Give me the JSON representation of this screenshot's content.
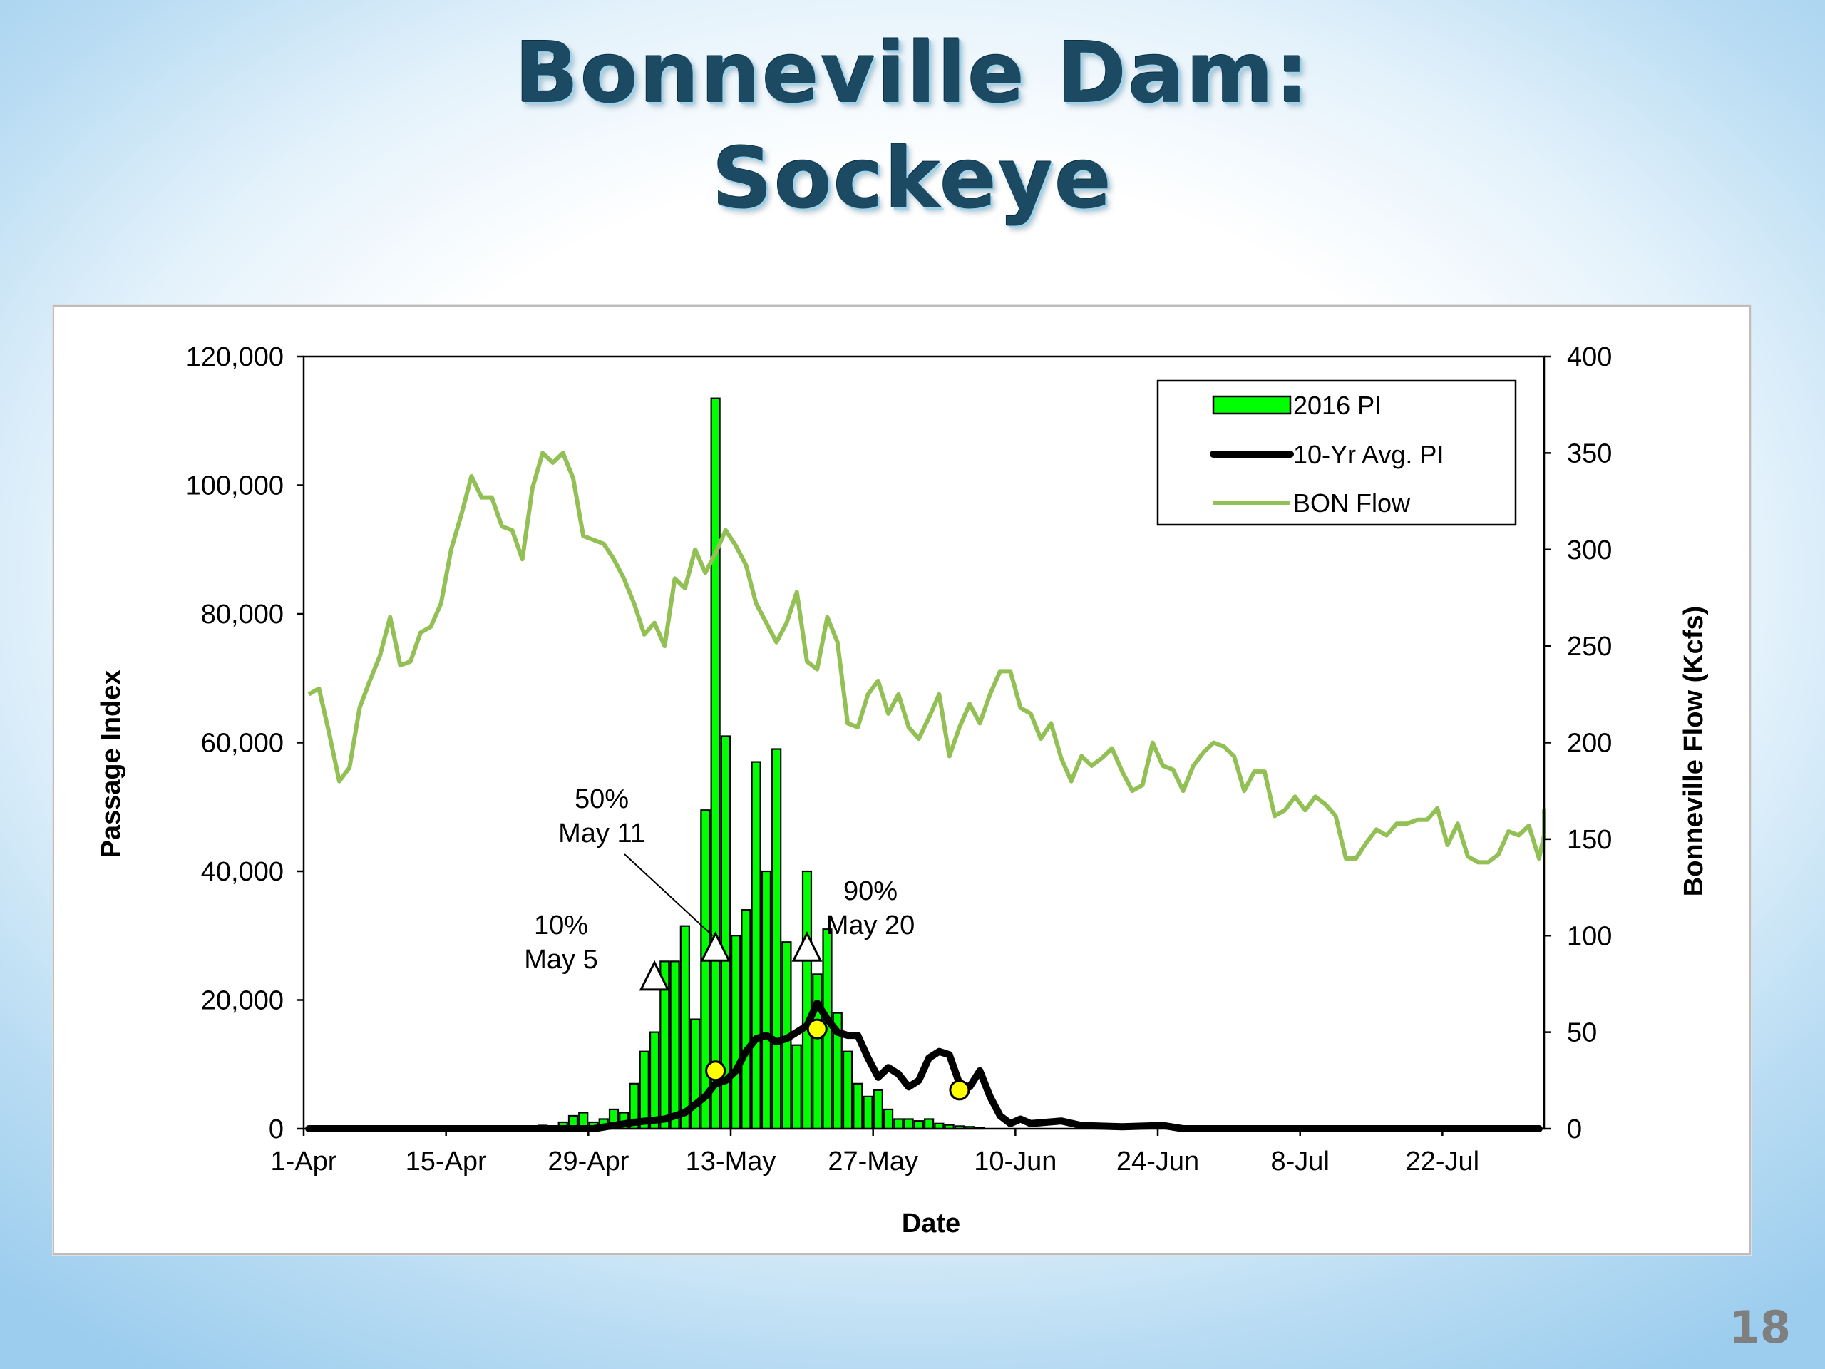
{
  "slide": {
    "title_line1": "Bonneville Dam:",
    "title_line2": "Sockeye",
    "page_number": "18"
  },
  "chart_data": {
    "type": "bar",
    "xlabel": "Date",
    "ylabel": "Passage Index",
    "y2label": "Bonneville  Flow (Kcfs)",
    "ylim": [
      0,
      120000
    ],
    "y2lim": [
      0,
      400
    ],
    "x_start": "1-Apr",
    "x_end": "31-Jul",
    "x_ticks": [
      "1-Apr",
      "15-Apr",
      "29-Apr",
      "13-May",
      "27-May",
      "10-Jun",
      "24-Jun",
      "8-Jul",
      "22-Jul"
    ],
    "y_ticks": [
      "0",
      "20,000",
      "40,000",
      "60,000",
      "80,000",
      "100,000",
      "120,000"
    ],
    "y2_ticks": [
      "0",
      "50",
      "100",
      "150",
      "200",
      "250",
      "300",
      "350",
      "400"
    ],
    "legend_position": "top-right",
    "colors": {
      "bars": "#00ff00",
      "bar_outline": "#000000",
      "avg": "#000000",
      "flow": "#92c054",
      "marker_avg": "#ffff00"
    },
    "series": [
      {
        "name": "2016 PI",
        "kind": "bar",
        "points": [
          [
            "23-Apr",
            200
          ],
          [
            "24-Apr",
            500
          ],
          [
            "25-Apr",
            200
          ],
          [
            "26-Apr",
            1000
          ],
          [
            "27-Apr",
            2000
          ],
          [
            "28-Apr",
            2500
          ],
          [
            "29-Apr",
            1000
          ],
          [
            "30-Apr",
            1500
          ],
          [
            "1-May",
            3000
          ],
          [
            "2-May",
            2500
          ],
          [
            "3-May",
            7000
          ],
          [
            "4-May",
            12000
          ],
          [
            "5-May",
            15000
          ],
          [
            "6-May",
            26000
          ],
          [
            "7-May",
            26000
          ],
          [
            "8-May",
            31500
          ],
          [
            "9-May",
            17000
          ],
          [
            "10-May",
            49500
          ],
          [
            "11-May",
            113500
          ],
          [
            "12-May",
            61000
          ],
          [
            "13-May",
            30000
          ],
          [
            "14-May",
            34000
          ],
          [
            "15-May",
            57000
          ],
          [
            "16-May",
            40000
          ],
          [
            "17-May",
            59000
          ],
          [
            "18-May",
            29000
          ],
          [
            "19-May",
            13000
          ],
          [
            "20-May",
            40000
          ],
          [
            "21-May",
            24000
          ],
          [
            "22-May",
            31000
          ],
          [
            "23-May",
            18000
          ],
          [
            "24-May",
            12000
          ],
          [
            "25-May",
            7000
          ],
          [
            "26-May",
            5000
          ],
          [
            "27-May",
            6000
          ],
          [
            "28-May",
            3000
          ],
          [
            "29-May",
            1500
          ],
          [
            "30-May",
            1500
          ],
          [
            "31-May",
            1200
          ],
          [
            "1-Jun",
            1500
          ],
          [
            "2-Jun",
            800
          ],
          [
            "3-Jun",
            600
          ],
          [
            "4-Jun",
            400
          ],
          [
            "5-Jun",
            300
          ],
          [
            "6-Jun",
            200
          ]
        ]
      },
      {
        "name": "10-Yr Avg. PI",
        "kind": "line",
        "points": [
          [
            "1-Apr",
            0
          ],
          [
            "29-Apr",
            0
          ],
          [
            "1-May",
            500
          ],
          [
            "3-May",
            1000
          ],
          [
            "6-May",
            1500
          ],
          [
            "8-May",
            2500
          ],
          [
            "10-May",
            5000
          ],
          [
            "11-May",
            7000
          ],
          [
            "12-May",
            7500
          ],
          [
            "13-May",
            9000
          ],
          [
            "14-May",
            12000
          ],
          [
            "15-May",
            14000
          ],
          [
            "16-May",
            14500
          ],
          [
            "17-May",
            13500
          ],
          [
            "18-May",
            14000
          ],
          [
            "19-May",
            15000
          ],
          [
            "20-May",
            16000
          ],
          [
            "21-May",
            19500
          ],
          [
            "22-May",
            17000
          ],
          [
            "23-May",
            15000
          ],
          [
            "24-May",
            14500
          ],
          [
            "25-May",
            14500
          ],
          [
            "26-May",
            11000
          ],
          [
            "27-May",
            8000
          ],
          [
            "28-May",
            9500
          ],
          [
            "29-May",
            8500
          ],
          [
            "30-May",
            6500
          ],
          [
            "31-May",
            7500
          ],
          [
            "1-Jun",
            11000
          ],
          [
            "2-Jun",
            12000
          ],
          [
            "3-Jun",
            11500
          ],
          [
            "4-Jun",
            7000
          ],
          [
            "5-Jun",
            6500
          ],
          [
            "6-Jun",
            9000
          ],
          [
            "7-Jun",
            5000
          ],
          [
            "8-Jun",
            2000
          ],
          [
            "9-Jun",
            800
          ],
          [
            "10-Jun",
            1500
          ],
          [
            "11-Jun",
            800
          ],
          [
            "14-Jun",
            1200
          ],
          [
            "16-Jun",
            500
          ],
          [
            "20-Jun",
            300
          ],
          [
            "24-Jun",
            500
          ],
          [
            "26-Jun",
            0
          ],
          [
            "31-Jul",
            0
          ]
        ],
        "markers": [
          [
            "11-May",
            9000
          ],
          [
            "21-May",
            15500
          ],
          [
            "4-Jun",
            6000
          ]
        ]
      },
      {
        "name": "BON Flow",
        "kind": "line",
        "axis": "right",
        "points": [
          [
            "1-Apr",
            225
          ],
          [
            "2-Apr",
            228
          ],
          [
            "3-Apr",
            205
          ],
          [
            "4-Apr",
            180
          ],
          [
            "5-Apr",
            187
          ],
          [
            "6-Apr",
            218
          ],
          [
            "7-Apr",
            232
          ],
          [
            "8-Apr",
            245
          ],
          [
            "9-Apr",
            265
          ],
          [
            "10-Apr",
            240
          ],
          [
            "11-Apr",
            242
          ],
          [
            "12-Apr",
            257
          ],
          [
            "13-Apr",
            260
          ],
          [
            "14-Apr",
            272
          ],
          [
            "15-Apr",
            300
          ],
          [
            "16-Apr",
            318
          ],
          [
            "17-Apr",
            338
          ],
          [
            "18-Apr",
            327
          ],
          [
            "19-Apr",
            327
          ],
          [
            "20-Apr",
            312
          ],
          [
            "21-Apr",
            310
          ],
          [
            "22-Apr",
            295
          ],
          [
            "23-Apr",
            332
          ],
          [
            "24-Apr",
            350
          ],
          [
            "25-Apr",
            345
          ],
          [
            "26-Apr",
            350
          ],
          [
            "27-Apr",
            337
          ],
          [
            "28-Apr",
            307
          ],
          [
            "29-Apr",
            305
          ],
          [
            "30-Apr",
            303
          ],
          [
            "1-May",
            295
          ],
          [
            "2-May",
            285
          ],
          [
            "3-May",
            272
          ],
          [
            "4-May",
            256
          ],
          [
            "5-May",
            262
          ],
          [
            "6-May",
            250
          ],
          [
            "7-May",
            285
          ],
          [
            "8-May",
            280
          ],
          [
            "9-May",
            300
          ],
          [
            "10-May",
            288
          ],
          [
            "11-May",
            298
          ],
          [
            "12-May",
            310
          ],
          [
            "13-May",
            302
          ],
          [
            "14-May",
            292
          ],
          [
            "15-May",
            272
          ],
          [
            "16-May",
            262
          ],
          [
            "17-May",
            252
          ],
          [
            "18-May",
            262
          ],
          [
            "19-May",
            278
          ],
          [
            "20-May",
            242
          ],
          [
            "21-May",
            238
          ],
          [
            "22-May",
            265
          ],
          [
            "23-May",
            252
          ],
          [
            "24-May",
            210
          ],
          [
            "25-May",
            208
          ],
          [
            "26-May",
            225
          ],
          [
            "27-May",
            232
          ],
          [
            "28-May",
            215
          ],
          [
            "29-May",
            225
          ],
          [
            "30-May",
            208
          ],
          [
            "31-May",
            202
          ],
          [
            "1-Jun",
            213
          ],
          [
            "2-Jun",
            225
          ],
          [
            "3-Jun",
            193
          ],
          [
            "4-Jun",
            208
          ],
          [
            "5-Jun",
            220
          ],
          [
            "6-Jun",
            210
          ],
          [
            "7-Jun",
            225
          ],
          [
            "8-Jun",
            237
          ],
          [
            "9-Jun",
            237
          ],
          [
            "10-Jun",
            218
          ],
          [
            "11-Jun",
            215
          ],
          [
            "12-Jun",
            202
          ],
          [
            "13-Jun",
            210
          ],
          [
            "14-Jun",
            192
          ],
          [
            "15-Jun",
            180
          ],
          [
            "16-Jun",
            193
          ],
          [
            "17-Jun",
            188
          ],
          [
            "18-Jun",
            192
          ],
          [
            "19-Jun",
            197
          ],
          [
            "20-Jun",
            185
          ],
          [
            "21-Jun",
            175
          ],
          [
            "22-Jun",
            178
          ],
          [
            "23-Jun",
            200
          ],
          [
            "24-Jun",
            188
          ],
          [
            "25-Jun",
            186
          ],
          [
            "26-Jun",
            175
          ],
          [
            "27-Jun",
            188
          ],
          [
            "28-Jun",
            195
          ],
          [
            "29-Jun",
            200
          ],
          [
            "30-Jun",
            198
          ],
          [
            "1-Jul",
            193
          ],
          [
            "2-Jul",
            175
          ],
          [
            "3-Jul",
            185
          ],
          [
            "4-Jul",
            185
          ],
          [
            "5-Jul",
            162
          ],
          [
            "6-Jul",
            165
          ],
          [
            "7-Jul",
            172
          ],
          [
            "8-Jul",
            165
          ],
          [
            "9-Jul",
            172
          ],
          [
            "10-Jul",
            168
          ],
          [
            "11-Jul",
            162
          ],
          [
            "12-Jul",
            140
          ],
          [
            "13-Jul",
            140
          ],
          [
            "14-Jul",
            148
          ],
          [
            "15-Jul",
            155
          ],
          [
            "16-Jul",
            152
          ],
          [
            "17-Jul",
            158
          ],
          [
            "18-Jul",
            158
          ],
          [
            "19-Jul",
            160
          ],
          [
            "20-Jul",
            160
          ],
          [
            "21-Jul",
            166
          ],
          [
            "22-Jul",
            147
          ],
          [
            "23-Jul",
            158
          ],
          [
            "24-Jul",
            141
          ],
          [
            "25-Jul",
            138
          ],
          [
            "26-Jul",
            138
          ],
          [
            "27-Jul",
            142
          ],
          [
            "28-Jul",
            154
          ],
          [
            "29-Jul",
            152
          ],
          [
            "30-Jul",
            157
          ],
          [
            "31-Jul",
            140
          ],
          [
            "1-Aug",
            152
          ],
          [
            "2-Aug",
            165
          ],
          [
            "3-Aug",
            152
          ]
        ]
      }
    ],
    "annotations": [
      {
        "line1": "10%",
        "line2": "May 5",
        "date": "5-May",
        "value": 23500
      },
      {
        "line1": "50%",
        "line2": "May 11",
        "date": "11-May",
        "value": 28000
      },
      {
        "line1": "90%",
        "line2": "May 20",
        "date": "20-May",
        "value": 28000
      }
    ]
  }
}
